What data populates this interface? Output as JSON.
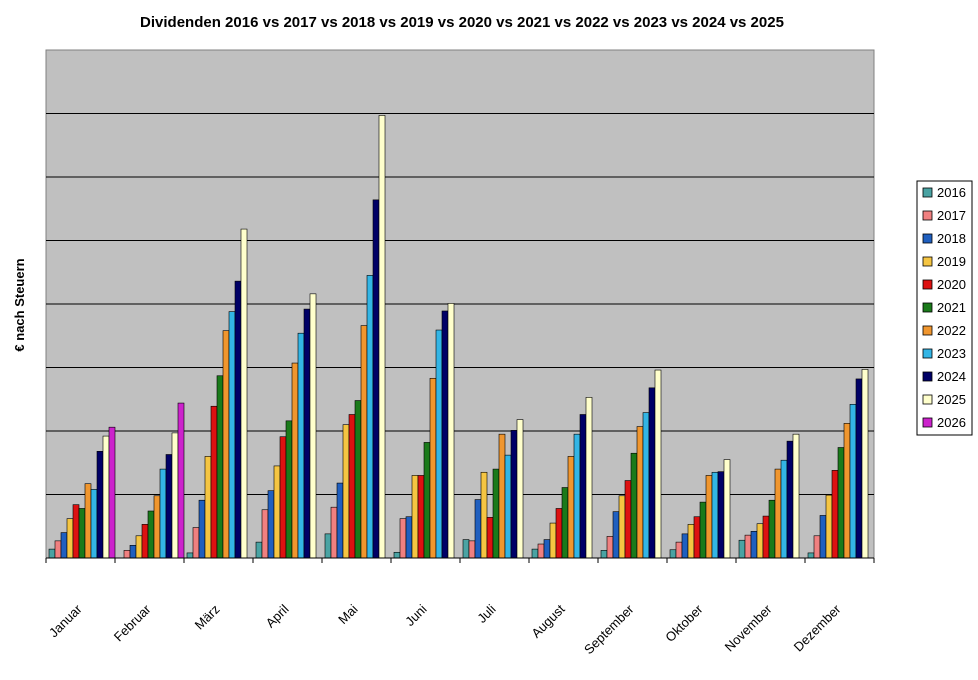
{
  "chart_data": {
    "type": "bar",
    "title": "Dividenden 2016 vs 2017 vs 2018 vs 2019 vs 2020 vs 2021 vs 2022 vs 2023 vs 2024 vs 2025",
    "xlabel": "",
    "ylabel": "€ nach Steuern",
    "ylim": [
      0,
      8
    ],
    "grid": true,
    "legend_position": "right",
    "categories": [
      "Januar",
      "Februar",
      "März",
      "April",
      "Mai",
      "Juni",
      "Juli",
      "August",
      "September",
      "Oktober",
      "November",
      "Dezember"
    ],
    "series": [
      {
        "name": "2016",
        "color": "#4aa3a3",
        "values": [
          0.14,
          0.0,
          0.08,
          0.25,
          0.38,
          0.09,
          0.29,
          0.14,
          0.12,
          0.13,
          0.28,
          0.08
        ]
      },
      {
        "name": "2017",
        "color": "#f08080",
        "values": [
          0.27,
          0.12,
          0.48,
          0.76,
          0.8,
          0.62,
          0.27,
          0.22,
          0.34,
          0.25,
          0.36,
          0.35
        ]
      },
      {
        "name": "2018",
        "color": "#1f5fbf",
        "values": [
          0.4,
          0.2,
          0.91,
          1.06,
          1.18,
          0.65,
          0.92,
          0.29,
          0.73,
          0.38,
          0.42,
          0.67
        ]
      },
      {
        "name": "2019",
        "color": "#f5c542",
        "values": [
          0.62,
          0.35,
          1.6,
          1.45,
          2.1,
          1.3,
          1.35,
          0.55,
          0.98,
          0.53,
          0.54,
          0.99
        ]
      },
      {
        "name": "2020",
        "color": "#dd1111",
        "values": [
          0.84,
          0.53,
          2.39,
          1.91,
          2.26,
          1.3,
          0.64,
          0.78,
          1.22,
          0.65,
          0.66,
          1.38
        ]
      },
      {
        "name": "2021",
        "color": "#1a7a1a",
        "values": [
          0.78,
          0.74,
          2.87,
          2.16,
          2.48,
          1.82,
          1.4,
          1.11,
          1.65,
          0.88,
          0.91,
          1.74
        ]
      },
      {
        "name": "2022",
        "color": "#f0962e",
        "values": [
          1.17,
          0.98,
          3.58,
          3.07,
          3.66,
          2.83,
          1.95,
          1.6,
          2.07,
          1.3,
          1.4,
          2.12
        ]
      },
      {
        "name": "2023",
        "color": "#33b5e5",
        "values": [
          1.08,
          1.4,
          3.88,
          3.54,
          4.45,
          3.59,
          1.62,
          1.95,
          2.29,
          1.35,
          1.54,
          2.42
        ]
      },
      {
        "name": "2024",
        "color": "#000066",
        "values": [
          1.68,
          1.63,
          4.36,
          3.92,
          5.64,
          3.89,
          2.01,
          2.26,
          2.68,
          1.36,
          1.84,
          2.82
        ]
      },
      {
        "name": "2025",
        "color": "#ffffcc",
        "values": [
          1.92,
          1.97,
          5.18,
          4.16,
          6.97,
          4.01,
          2.18,
          2.53,
          2.96,
          1.55,
          1.95,
          2.97
        ]
      },
      {
        "name": "2026",
        "color": "#cc22cc",
        "values": [
          2.06,
          2.44,
          null,
          null,
          null,
          null,
          null,
          null,
          null,
          null,
          null,
          null
        ]
      }
    ]
  }
}
